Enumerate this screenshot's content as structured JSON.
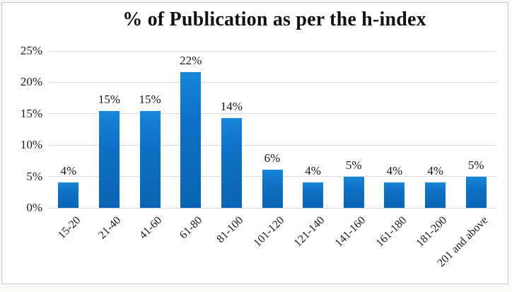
{
  "page": {
    "background_color": "#faf9f5",
    "frame_background": "#ffffff",
    "frame_border_color": "#c3c8d0"
  },
  "chart_data": {
    "type": "bar",
    "title": "% of Publication as per the h-index",
    "xlabel": "",
    "ylabel": "",
    "categories": [
      "15-20",
      "21-40",
      "41-60",
      "61-80",
      "81-100",
      "101-120",
      "121-140",
      "141-160",
      "161-180",
      "181-200",
      "201 and above"
    ],
    "values": [
      4,
      15,
      15,
      22,
      14,
      6,
      4,
      5,
      4,
      4,
      5
    ],
    "bar_labels": [
      "4%",
      "15%",
      "15%",
      "22%",
      "14%",
      "6%",
      "4%",
      "5%",
      "4%",
      "4%",
      "5%"
    ],
    "visual_values": [
      4.1,
      15.4,
      15.4,
      21.6,
      14.3,
      6.1,
      4.1,
      5.0,
      4.1,
      4.1,
      5.0
    ],
    "ylim": [
      0,
      25
    ],
    "y_ticks": [
      {
        "value": 0,
        "label": "0%"
      },
      {
        "value": 5,
        "label": "5%"
      },
      {
        "value": 10,
        "label": "10%"
      },
      {
        "value": 15,
        "label": "15%"
      },
      {
        "value": 20,
        "label": "20%"
      },
      {
        "value": 25,
        "label": "25%"
      }
    ],
    "grid": true,
    "legend": false,
    "bar_color_top": "#1886d8",
    "bar_color_bottom": "#0a64b4",
    "gridline_color": "#d8dce2",
    "text_color": "#1b1b1b"
  }
}
